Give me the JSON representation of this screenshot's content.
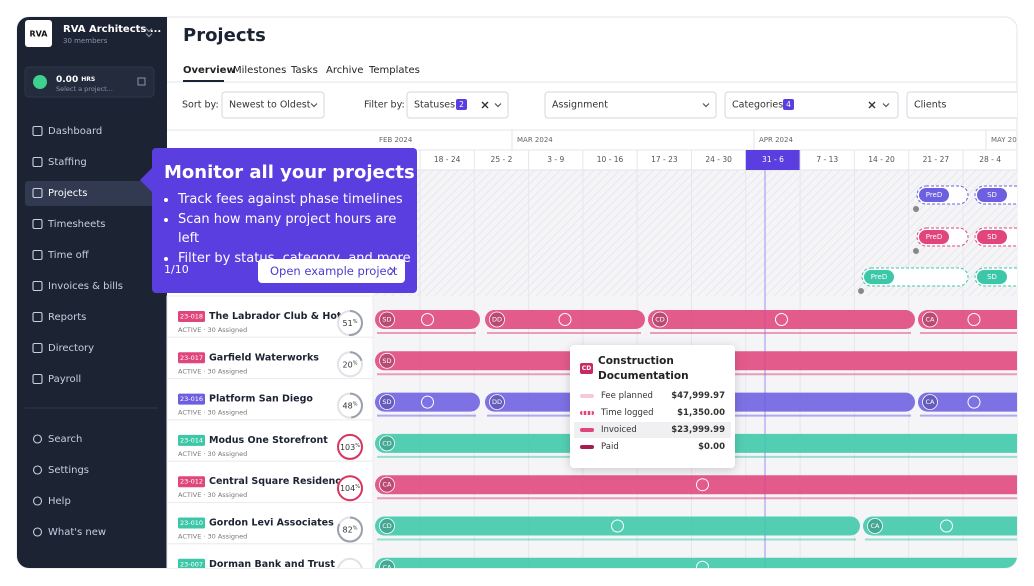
{
  "sidebar": {
    "logo": "RVA",
    "org": "RVA Architects ...",
    "members": "30 members",
    "timer": "0.00",
    "timer_unit": "HRS",
    "timer_hint": "Select a project...",
    "nav": [
      "Dashboard",
      "Staffing",
      "Projects",
      "Timesheets",
      "Time off",
      "Invoices & bills",
      "Reports",
      "Directory",
      "Payroll"
    ],
    "bottom_nav": [
      "Search",
      "Settings",
      "Help",
      "What's new"
    ]
  },
  "header": {
    "title": "Projects",
    "tabs": [
      "Overview",
      "Milestones",
      "Tasks",
      "Archive",
      "Templates"
    ]
  },
  "filters": {
    "sort_label": "Sort by:",
    "sort_value": "Newest to Oldest",
    "filter_label": "Filter by:",
    "statuses": "Statuses",
    "statuses_count": 2,
    "assignment": "Assignment",
    "categories": "Categories",
    "categories_count": 4,
    "clients": "Clients"
  },
  "timeline": {
    "months": [
      "FEB 2024",
      "MAR 2024",
      "APR 2024",
      "MAY 20"
    ],
    "weeks": [
      "18 - 24",
      "25 - 2",
      "3 - 9",
      "10 - 16",
      "17 - 23",
      "24 - 30",
      "31 - 6",
      "7 - 13",
      "14 - 20",
      "21 - 27",
      "28 - 4"
    ]
  },
  "upper_phases": [
    [
      "PreD",
      "SD"
    ],
    [
      "PreD",
      "SD"
    ],
    [
      "PreD",
      "SD"
    ]
  ],
  "projects": {
    "percent_sign": "%",
    "rows": [
      {
        "code": "23-018",
        "name": "The Labrador Club & Hotel",
        "status": "ACTIVE · 30 Assigned",
        "percent": 51,
        "phases": [
          "SD",
          "DD",
          "CD",
          "CA"
        ]
      },
      {
        "code": "23-017",
        "name": "Garfield Waterworks",
        "status": "ACTIVE · 30 Assigned",
        "percent": 20,
        "phases": [
          "SD"
        ]
      },
      {
        "code": "23-016",
        "name": "Platform San Diego",
        "status": "ACTIVE · 30 Assigned",
        "percent": 48,
        "phases": [
          "SD",
          "DD",
          "CA"
        ]
      },
      {
        "code": "23-014",
        "name": "Modus One Storefront",
        "status": "ACTIVE · 30 Assigned",
        "percent": 103,
        "phases": [
          "CD"
        ]
      },
      {
        "code": "23-012",
        "name": "Central Square Residences",
        "status": "ACTIVE · 30 Assigned",
        "percent": 104,
        "phases": [
          "CA"
        ]
      },
      {
        "code": "23-010",
        "name": "Gordon Levi Associates",
        "status": "ACTIVE · 30 Assigned",
        "percent": 82,
        "phases": [
          "CD",
          "CA"
        ]
      },
      {
        "code": "23-007",
        "name": "Dorman Bank and Trust",
        "status": "ACTIVE · 30 Assigned",
        "phases": [
          "CA"
        ]
      }
    ]
  },
  "onboarding": {
    "title": "Monitor all your projects",
    "bullets": [
      "Track fees against phase timelines",
      "Scan how many project hours are left",
      "Filter by status, category, and more"
    ],
    "step": "1/10",
    "button": "Open example project"
  },
  "popover": {
    "badge": "CD",
    "title": "Construction Documentation",
    "rows": [
      {
        "label": "Fee planned",
        "value": "$47,999.97"
      },
      {
        "label": "Time logged",
        "value": "$1,350.00"
      },
      {
        "label": "Invoiced",
        "value": "$23,999.99"
      },
      {
        "label": "Paid",
        "value": "$0.00"
      }
    ]
  }
}
